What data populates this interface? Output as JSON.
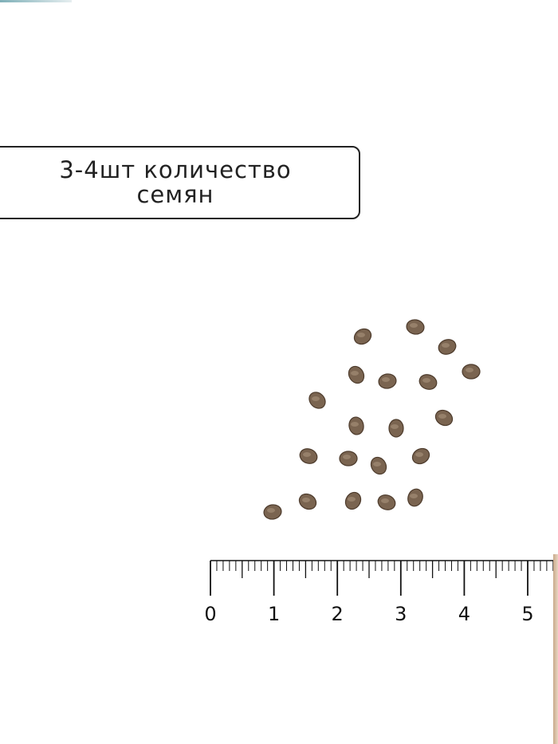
{
  "label": {
    "line1": "3-4шт количество",
    "line2": "семян"
  },
  "ruler": {
    "unit_labels": [
      "0",
      "1",
      "2",
      "3",
      "4",
      "5"
    ]
  },
  "colors": {
    "seed": "#7a6450",
    "text": "#222222"
  }
}
